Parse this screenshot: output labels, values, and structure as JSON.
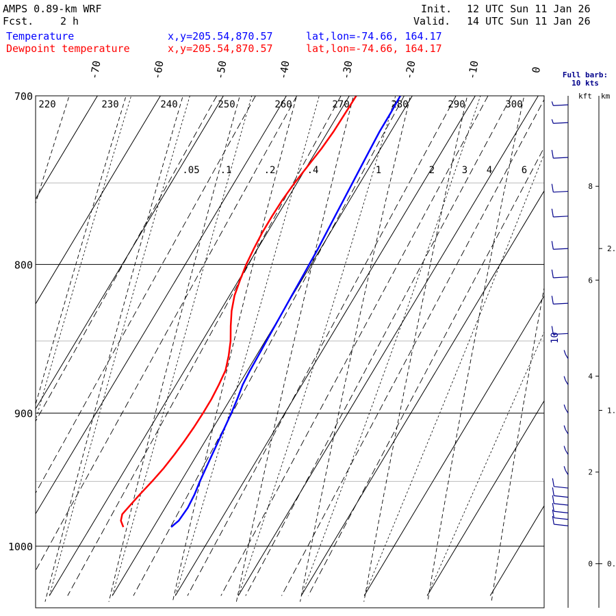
{
  "header": {
    "model": "AMPS 0.89-km WRF",
    "fcst_label": "Fcst.",
    "fcst_value": "2 h",
    "init_label": "Init.",
    "init_value": "12 UTC Sun 11 Jan 26",
    "valid_label": "Valid.",
    "valid_value": "14 UTC Sun 11 Jan 26"
  },
  "legend": [
    {
      "name": "Temperature",
      "xy": "x,y=205.54,870.57",
      "latlon": "lat,lon=-74.66, 164.17",
      "color": "#0000ff"
    },
    {
      "name": "Dewpoint temperature",
      "xy": "x,y=205.54,870.57",
      "latlon": "lat,lon=-74.66, 164.17",
      "color": "#ff0000"
    }
  ],
  "wind_panel": {
    "title_line1": "Full barb:",
    "title_line2": "10 kts"
  },
  "height_axis": {
    "kft_label": "kft",
    "km_label": "km",
    "kft_ticks": [
      {
        "v": 0,
        "p": 1014
      },
      {
        "v": 2,
        "p": 943
      },
      {
        "v": 4,
        "p": 874
      },
      {
        "v": 6,
        "p": 810
      },
      {
        "v": 8,
        "p": 752
      }
    ],
    "km_ticks": [
      {
        "v": "0.",
        "p": 1014
      },
      {
        "v": "1.",
        "p": 898
      },
      {
        "v": "2.",
        "p": 790
      }
    ]
  },
  "wind_label": "10",
  "chart_data": {
    "type": "skew-t",
    "pressure_ticks": [
      700,
      800,
      900,
      1000
    ],
    "pressure_range": [
      700,
      1040
    ],
    "temp_axis_labels": [
      -70,
      -60,
      -50,
      -40,
      -30,
      -20,
      -10,
      0
    ],
    "potential_temp_labels": [
      220,
      230,
      240,
      250,
      260,
      270,
      280,
      290,
      300
    ],
    "mixing_ratio_labels": [
      ".05",
      ".1",
      ".2",
      ".4",
      "1",
      "2",
      "3",
      "4",
      "6"
    ],
    "series": [
      {
        "name": "Temperature",
        "color": "#0000ff",
        "points": [
          [
            985,
            -17.2
          ],
          [
            980,
            -16.6
          ],
          [
            970,
            -16.4
          ],
          [
            960,
            -16.6
          ],
          [
            950,
            -17.0
          ],
          [
            940,
            -17.3
          ],
          [
            930,
            -17.6
          ],
          [
            920,
            -17.9
          ],
          [
            910,
            -18.2
          ],
          [
            900,
            -18.5
          ],
          [
            890,
            -18.9
          ],
          [
            880,
            -19.4
          ],
          [
            870,
            -19.6
          ],
          [
            860,
            -19.7
          ],
          [
            850,
            -19.8
          ],
          [
            840,
            -19.9
          ],
          [
            830,
            -20.0
          ],
          [
            820,
            -20.1
          ],
          [
            810,
            -20.2
          ],
          [
            800,
            -20.3
          ],
          [
            790,
            -20.4
          ],
          [
            780,
            -20.6
          ],
          [
            770,
            -20.8
          ],
          [
            760,
            -21.0
          ],
          [
            750,
            -21.2
          ],
          [
            740,
            -21.4
          ],
          [
            730,
            -21.6
          ],
          [
            720,
            -21.8
          ],
          [
            710,
            -21.8
          ],
          [
            700,
            -21.9
          ]
        ]
      },
      {
        "name": "Dewpoint temperature",
        "color": "#ff0000",
        "points": [
          [
            985,
            -24.8
          ],
          [
            980,
            -25.8
          ],
          [
            975,
            -26.2
          ],
          [
            970,
            -25.9
          ],
          [
            960,
            -25.3
          ],
          [
            950,
            -24.6
          ],
          [
            940,
            -24.0
          ],
          [
            930,
            -23.6
          ],
          [
            920,
            -23.3
          ],
          [
            910,
            -23.1
          ],
          [
            900,
            -23.0
          ],
          [
            890,
            -23.0
          ],
          [
            880,
            -23.2
          ],
          [
            870,
            -23.5
          ],
          [
            860,
            -24.4
          ],
          [
            850,
            -25.5
          ],
          [
            840,
            -26.9
          ],
          [
            830,
            -28.2
          ],
          [
            820,
            -29.2
          ],
          [
            810,
            -29.8
          ],
          [
            800,
            -30.3
          ],
          [
            790,
            -30.6
          ],
          [
            780,
            -30.8
          ],
          [
            770,
            -30.8
          ],
          [
            760,
            -30.7
          ],
          [
            750,
            -30.4
          ],
          [
            740,
            -29.9
          ],
          [
            730,
            -29.4
          ],
          [
            720,
            -29.1
          ],
          [
            710,
            -29.0
          ],
          [
            700,
            -28.9
          ]
        ]
      }
    ],
    "wind_barbs": [
      {
        "p": 705,
        "kts": 5
      },
      {
        "p": 715,
        "kts": 5
      },
      {
        "p": 735,
        "kts": 10
      },
      {
        "p": 755,
        "kts": 10
      },
      {
        "p": 770,
        "kts": 10
      },
      {
        "p": 790,
        "kts": 10
      },
      {
        "p": 808,
        "kts": 10
      },
      {
        "p": 825,
        "kts": 10
      },
      {
        "p": 845,
        "kts": 10
      },
      {
        "p": 862,
        "kts": 5
      },
      {
        "p": 880,
        "kts": 5
      },
      {
        "p": 900,
        "kts": 5
      },
      {
        "p": 915,
        "kts": 5
      },
      {
        "p": 930,
        "kts": 5
      },
      {
        "p": 945,
        "kts": 5
      },
      {
        "p": 955,
        "kts": 10
      },
      {
        "p": 962,
        "kts": 10
      },
      {
        "p": 968,
        "kts": 10
      },
      {
        "p": 974,
        "kts": 10
      },
      {
        "p": 979,
        "kts": 10
      },
      {
        "p": 984,
        "kts": 10
      }
    ]
  }
}
